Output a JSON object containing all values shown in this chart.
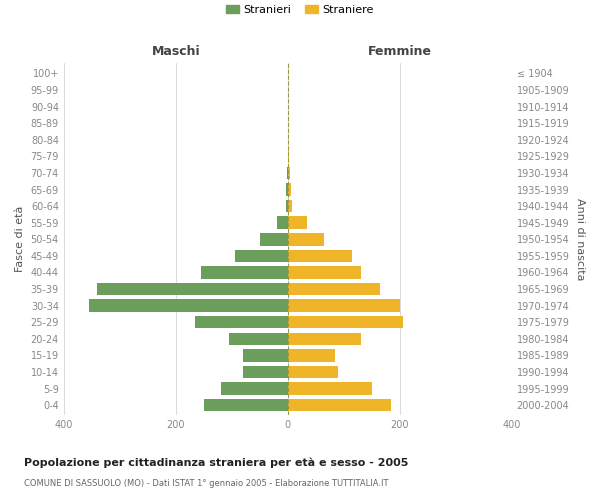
{
  "age_groups": [
    "0-4",
    "5-9",
    "10-14",
    "15-19",
    "20-24",
    "25-29",
    "30-34",
    "35-39",
    "40-44",
    "45-49",
    "50-54",
    "55-59",
    "60-64",
    "65-69",
    "70-74",
    "75-79",
    "80-84",
    "85-89",
    "90-94",
    "95-99",
    "100+"
  ],
  "birth_years": [
    "2000-2004",
    "1995-1999",
    "1990-1994",
    "1985-1989",
    "1980-1984",
    "1975-1979",
    "1970-1974",
    "1965-1969",
    "1960-1964",
    "1955-1959",
    "1950-1954",
    "1945-1949",
    "1940-1944",
    "1935-1939",
    "1930-1934",
    "1925-1929",
    "1920-1924",
    "1915-1919",
    "1910-1914",
    "1905-1909",
    "≤ 1904"
  ],
  "maschi": [
    150,
    120,
    80,
    80,
    105,
    165,
    355,
    340,
    155,
    95,
    50,
    20,
    4,
    3,
    2,
    0,
    0,
    0,
    0,
    0,
    0
  ],
  "femmine": [
    185,
    150,
    90,
    85,
    130,
    205,
    200,
    165,
    130,
    115,
    65,
    35,
    8,
    5,
    4,
    3,
    0,
    0,
    0,
    0,
    0
  ],
  "maschi_color": "#6a9e5a",
  "femmine_color": "#f0b429",
  "background_color": "#ffffff",
  "grid_color": "#cccccc",
  "dashed_line_color": "#999944",
  "title": "Popolazione per cittadinanza straniera per età e sesso - 2005",
  "subtitle": "COMUNE DI SASSUOLO (MO) - Dati ISTAT 1° gennaio 2005 - Elaborazione TUTTITALIA.IT",
  "xlabel_left": "Maschi",
  "xlabel_right": "Femmine",
  "ylabel_left": "Fasce di età",
  "ylabel_right": "Anni di nascita",
  "legend_maschi": "Stranieri",
  "legend_femmine": "Straniere",
  "xlim": 400,
  "bar_height": 0.75,
  "tick_color": "#888888",
  "label_color": "#555555"
}
